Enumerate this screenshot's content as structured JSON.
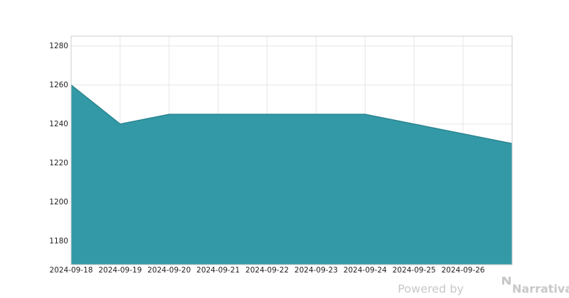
{
  "chart_data": {
    "type": "area",
    "x": [
      "2024-09-18",
      "2024-09-19",
      "2024-09-20",
      "2024-09-21",
      "2024-09-22",
      "2024-09-23",
      "2024-09-24",
      "2024-09-25",
      "2024-09-26",
      "2024-09-27"
    ],
    "values": [
      1260,
      1240,
      1245,
      1245,
      1245,
      1245,
      1245,
      1240,
      1235,
      1230
    ],
    "color": "#3399a6",
    "xlim": [
      "2024-09-18",
      "2024-09-27"
    ],
    "xticks": [
      "2024-09-18",
      "2024-09-19",
      "2024-09-20",
      "2024-09-21",
      "2024-09-22",
      "2024-09-23",
      "2024-09-24",
      "2024-09-25",
      "2024-09-26"
    ],
    "ylim": [
      1168,
      1285
    ],
    "yticks": [
      1180,
      1200,
      1220,
      1240,
      1260,
      1280
    ],
    "grid": true
  },
  "footer": {
    "prefix": "Powered by",
    "brand": "Narrativa"
  }
}
